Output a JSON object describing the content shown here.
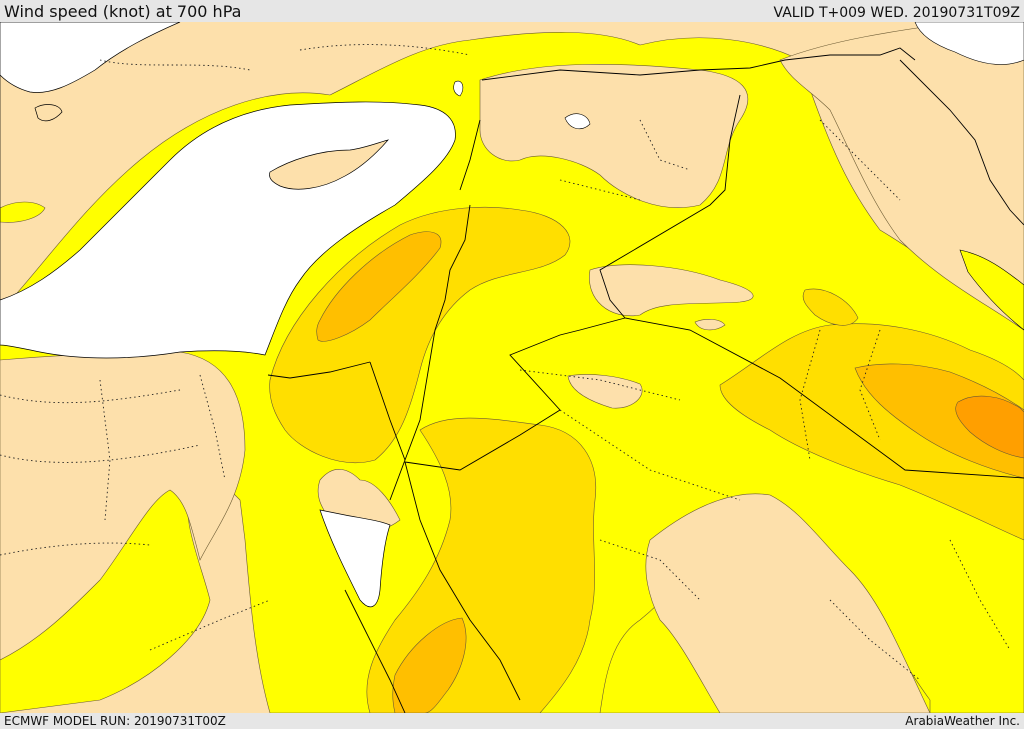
{
  "header": {
    "title": "Wind speed (knot) at 700 hPa",
    "valid": "VALID T+009 WED. 20190731T09Z"
  },
  "footer": {
    "model_run": "ECMWF MODEL RUN: 20190731T00Z",
    "credit": "ArabiaWeather Inc."
  },
  "map": {
    "colors": {
      "land_calm": "#fde0ab",
      "sea": "#ffffff",
      "band_light": "#ffff00",
      "band_mid": "#ffdf00",
      "band_strong": "#ffbf00",
      "band_max": "#ff9f00",
      "contour": "#6b5a33",
      "border": "#000000"
    }
  }
}
